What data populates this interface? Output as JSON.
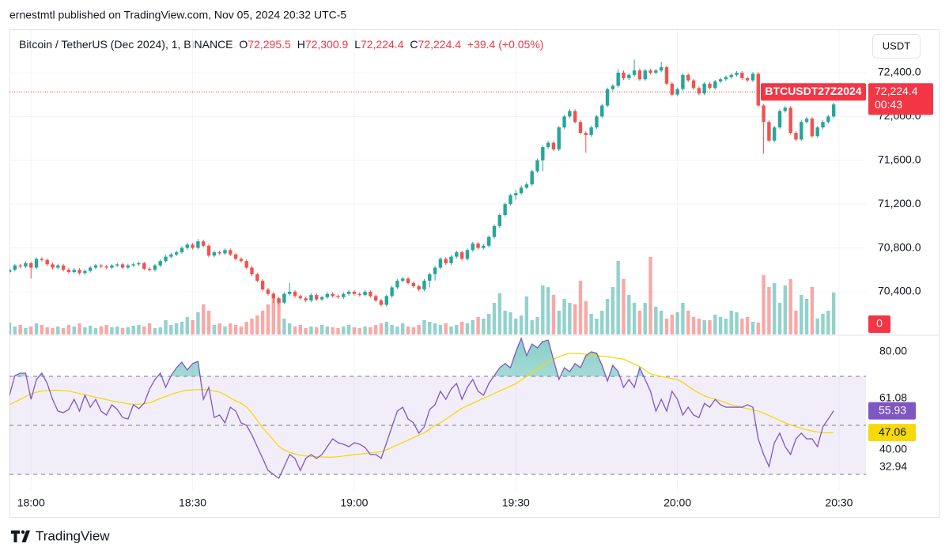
{
  "header": {
    "publisher_line": "ernestmtl published on TradingView.com, Nov 05, 2024 20:32 UTC-5",
    "symbol": "Bitcoin / TetherUS (Dec 2024), 1, BINANCE",
    "ohlc": [
      {
        "label": "O",
        "value": "72,295.5"
      },
      {
        "label": "H",
        "value": "72,300.9"
      },
      {
        "label": "L",
        "value": "72,224.4"
      },
      {
        "label": "C",
        "value": "72,224.4"
      }
    ],
    "change": "+39.4 (+0.05%)",
    "currency": "USDT"
  },
  "footer": {
    "brand": "TradingView"
  },
  "chart_data": {
    "type": "candlestick",
    "up_color": "#26a69a",
    "down_color": "#ef5350",
    "rsi_color": "#7e57c2",
    "rsi_ma_color": "#f5d90a",
    "grid": true,
    "xlim": [
      "17:56",
      "20:35"
    ],
    "xticks": [
      "18:00",
      "18:30",
      "19:00",
      "19:30",
      "20:00",
      "20:30"
    ],
    "ylim": [
      70010,
      72775
    ],
    "yticks": [
      {
        "value": 72400,
        "label": "72,400.0"
      },
      {
        "value": 72000,
        "label": "72,000.0"
      },
      {
        "value": 71600,
        "label": "71,600.0"
      },
      {
        "value": 71200,
        "label": "71,200.0"
      },
      {
        "value": 70800,
        "label": "70,800.0"
      },
      {
        "value": 70400,
        "label": "70,400.0"
      }
    ],
    "last_price": {
      "value": 72224.4,
      "label": "72,224.4"
    },
    "symbol_tag": "BTCUSDT27Z2024",
    "countdown": "00:43",
    "volume_ylim": [
      0,
      383
    ],
    "volume_ticks": [
      0
    ],
    "rsi_ylim": [
      23.55,
      86.45
    ],
    "rsi_yticks": [
      {
        "value": 80,
        "label": "80.00"
      },
      {
        "value": 61.08,
        "label": "61.08"
      },
      {
        "value": 40,
        "label": "40.00"
      },
      {
        "value": 32.94,
        "label": "32.94"
      }
    ],
    "rsi_levels": [
      70,
      50,
      30
    ],
    "x": [
      "17:56",
      "17:57",
      "17:58",
      "17:59",
      "18:00",
      "18:01",
      "18:02",
      "18:03",
      "18:04",
      "18:05",
      "18:06",
      "18:07",
      "18:08",
      "18:09",
      "18:10",
      "18:11",
      "18:12",
      "18:13",
      "18:14",
      "18:15",
      "18:16",
      "18:17",
      "18:18",
      "18:19",
      "18:20",
      "18:21",
      "18:22",
      "18:23",
      "18:24",
      "18:25",
      "18:26",
      "18:27",
      "18:28",
      "18:29",
      "18:30",
      "18:31",
      "18:32",
      "18:33",
      "18:34",
      "18:35",
      "18:36",
      "18:37",
      "18:38",
      "18:39",
      "18:40",
      "18:41",
      "18:42",
      "18:43",
      "18:44",
      "18:45",
      "18:46",
      "18:47",
      "18:48",
      "18:49",
      "18:50",
      "18:51",
      "18:52",
      "18:53",
      "18:54",
      "18:55",
      "18:56",
      "18:57",
      "18:58",
      "18:59",
      "19:00",
      "19:01",
      "19:02",
      "19:03",
      "19:04",
      "19:05",
      "19:06",
      "19:07",
      "19:08",
      "19:09",
      "19:10",
      "19:11",
      "19:12",
      "19:13",
      "19:14",
      "19:15",
      "19:16",
      "19:17",
      "19:18",
      "19:19",
      "19:20",
      "19:21",
      "19:22",
      "19:23",
      "19:24",
      "19:25",
      "19:26",
      "19:27",
      "19:28",
      "19:29",
      "19:30",
      "19:31",
      "19:32",
      "19:33",
      "19:34",
      "19:35",
      "19:36",
      "19:37",
      "19:38",
      "19:39",
      "19:40",
      "19:41",
      "19:42",
      "19:43",
      "19:44",
      "19:45",
      "19:46",
      "19:47",
      "19:48",
      "19:49",
      "19:50",
      "19:51",
      "19:52",
      "19:53",
      "19:54",
      "19:55",
      "19:56",
      "19:57",
      "19:58",
      "19:59",
      "20:00",
      "20:01",
      "20:02",
      "20:03",
      "20:04",
      "20:05",
      "20:06",
      "20:07",
      "20:08",
      "20:09",
      "20:10",
      "20:11",
      "20:12",
      "20:13",
      "20:14",
      "20:15",
      "20:16",
      "20:17",
      "20:18",
      "20:19",
      "20:20",
      "20:21",
      "20:22",
      "20:23",
      "20:24",
      "20:25",
      "20:26",
      "20:27",
      "20:28",
      "20:29"
    ],
    "open": [
      70580,
      70600,
      70640,
      70630,
      70660,
      70620,
      70700,
      70690,
      70650,
      70620,
      70640,
      70600,
      70580,
      70600,
      70570,
      70590,
      70620,
      70640,
      70630,
      70620,
      70640,
      70650,
      70620,
      70640,
      70650,
      70660,
      70610,
      70600,
      70640,
      70680,
      70720,
      70740,
      70760,
      70800,
      70830,
      70800,
      70860,
      70820,
      70730,
      70760,
      70750,
      70780,
      70740,
      70700,
      70680,
      70620,
      70560,
      70500,
      70420,
      70380,
      70340,
      70300,
      70380,
      70400,
      70360,
      70340,
      70320,
      70370,
      70330,
      70350,
      70380,
      70360,
      70350,
      70380,
      70400,
      70380,
      70370,
      70400,
      70360,
      70320,
      70280,
      70360,
      70440,
      70500,
      70520,
      70480,
      70450,
      70420,
      70500,
      70560,
      70620,
      70700,
      70660,
      70720,
      70760,
      70700,
      70780,
      70840,
      70800,
      70820,
      70900,
      71000,
      71100,
      71200,
      71280,
      71300,
      71350,
      71380,
      71500,
      71600,
      71720,
      71760,
      71700,
      71900,
      72000,
      72050,
      71950,
      71850,
      71830,
      71900,
      72000,
      72100,
      72250,
      72280,
      72400,
      72350,
      72380,
      72420,
      72340,
      72420,
      72400,
      72420,
      72450,
      72300,
      72200,
      72250,
      72380,
      72330,
      72260,
      72210,
      72300,
      72260,
      72320,
      72340,
      72360,
      72380,
      72400,
      72350,
      72330,
      72390,
      72100,
      71950,
      71780,
      71900,
      72050,
      72080,
      71850,
      71790,
      71950,
      71980,
      71820,
      71900,
      71950,
      72000
    ],
    "high": [
      70615,
      70655,
      70655,
      70675,
      70675,
      70715,
      70715,
      70705,
      70665,
      70655,
      70655,
      70615,
      70615,
      70615,
      70605,
      70635,
      70655,
      70655,
      70645,
      70655,
      70665,
      70665,
      70655,
      70665,
      70675,
      70675,
      70625,
      70655,
      70695,
      70735,
      70755,
      70775,
      70815,
      70845,
      70845,
      70880,
      70875,
      70835,
      70775,
      70775,
      70795,
      70795,
      70755,
      70715,
      70695,
      70635,
      70575,
      70515,
      70435,
      70395,
      70355,
      70395,
      70480,
      70415,
      70375,
      70355,
      70385,
      70385,
      70365,
      70395,
      70395,
      70375,
      70395,
      70415,
      70415,
      70395,
      70415,
      70415,
      70375,
      70335,
      70375,
      70455,
      70515,
      70535,
      70535,
      70495,
      70465,
      70515,
      70575,
      70635,
      70715,
      70715,
      70735,
      70775,
      70775,
      70795,
      70855,
      70855,
      70835,
      70915,
      71015,
      71115,
      71215,
      71295,
      71330,
      71370,
      71400,
      71515,
      71615,
      71735,
      71775,
      71775,
      71915,
      72015,
      72065,
      72065,
      71965,
      71865,
      71915,
      72015,
      72115,
      72265,
      72295,
      72430,
      72420,
      72395,
      72520,
      72440,
      72435,
      72435,
      72435,
      72500,
      72465,
      72315,
      72265,
      72395,
      72395,
      72345,
      72275,
      72315,
      72315,
      72335,
      72355,
      72375,
      72395,
      72415,
      72415,
      72365,
      72405,
      72405,
      72115,
      71965,
      71915,
      72065,
      72095,
      72095,
      71865,
      71965,
      71995,
      71995,
      71915,
      71965,
      72015,
      72125
    ],
    "low": [
      70565,
      70585,
      70615,
      70615,
      70520,
      70605,
      70675,
      70635,
      70605,
      70605,
      70585,
      70565,
      70565,
      70555,
      70555,
      70575,
      70605,
      70615,
      70605,
      70605,
      70625,
      70605,
      70605,
      70625,
      70635,
      70595,
      70585,
      70585,
      70625,
      70665,
      70705,
      70725,
      70745,
      70785,
      70785,
      70785,
      70805,
      70715,
      70715,
      70735,
      70735,
      70725,
      70685,
      70665,
      70605,
      70545,
      70485,
      70405,
      70365,
      70300,
      70285,
      70285,
      70365,
      70345,
      70325,
      70305,
      70305,
      70315,
      70315,
      70335,
      70345,
      70335,
      70335,
      70365,
      70365,
      70355,
      70355,
      70345,
      70305,
      70265,
      70265,
      70345,
      70425,
      70485,
      70465,
      70435,
      70405,
      70405,
      70440,
      70500,
      70605,
      70645,
      70645,
      70705,
      70685,
      70685,
      70765,
      70785,
      70785,
      70805,
      70885,
      70985,
      71085,
      71185,
      71240,
      71285,
      71335,
      71365,
      71485,
      71500,
      71705,
      71685,
      71685,
      71885,
      71985,
      71935,
      71835,
      71670,
      71815,
      71885,
      71985,
      72085,
      72235,
      72265,
      72335,
      72335,
      72365,
      72325,
      72325,
      72385,
      72385,
      72405,
      72285,
      72185,
      72185,
      72235,
      72315,
      72245,
      72195,
      72195,
      72245,
      72245,
      72305,
      72325,
      72345,
      72365,
      72335,
      72315,
      72315,
      72085,
      71660,
      71765,
      71765,
      71885,
      72035,
      71835,
      71775,
      71775,
      71935,
      71805,
      71805,
      71885,
      71935,
      71985
    ],
    "close": [
      70600,
      70640,
      70630,
      70660,
      70620,
      70700,
      70690,
      70650,
      70620,
      70640,
      70600,
      70580,
      70600,
      70570,
      70590,
      70620,
      70640,
      70630,
      70620,
      70640,
      70650,
      70620,
      70640,
      70650,
      70660,
      70610,
      70600,
      70640,
      70680,
      70720,
      70740,
      70760,
      70800,
      70830,
      70800,
      70860,
      70820,
      70730,
      70760,
      70750,
      70780,
      70740,
      70700,
      70680,
      70620,
      70560,
      70500,
      70420,
      70380,
      70340,
      70300,
      70380,
      70400,
      70360,
      70340,
      70320,
      70370,
      70330,
      70350,
      70380,
      70360,
      70350,
      70380,
      70400,
      70380,
      70370,
      70400,
      70360,
      70320,
      70280,
      70360,
      70440,
      70500,
      70520,
      70480,
      70450,
      70420,
      70500,
      70560,
      70620,
      70700,
      70660,
      70720,
      70760,
      70700,
      70780,
      70840,
      70800,
      70820,
      70900,
      71000,
      71100,
      71200,
      71280,
      71300,
      71350,
      71380,
      71500,
      71600,
      71720,
      71760,
      71700,
      71900,
      72000,
      72050,
      71950,
      71850,
      71830,
      71900,
      72000,
      72100,
      72250,
      72280,
      72400,
      72350,
      72380,
      72420,
      72340,
      72420,
      72400,
      72420,
      72450,
      72300,
      72200,
      72250,
      72380,
      72330,
      72260,
      72210,
      72300,
      72260,
      72320,
      72340,
      72360,
      72380,
      72400,
      72350,
      72330,
      72390,
      72100,
      71950,
      71780,
      71900,
      72050,
      72080,
      71850,
      71790,
      71950,
      71980,
      71820,
      71900,
      71950,
      72000,
      72110
    ],
    "volume": [
      15,
      10,
      12,
      8,
      10,
      14,
      12,
      9,
      8,
      10,
      8,
      12,
      10,
      14,
      9,
      11,
      8,
      10,
      12,
      9,
      10,
      8,
      9,
      11,
      12,
      10,
      14,
      8,
      9,
      18,
      12,
      14,
      16,
      22,
      18,
      28,
      38,
      30,
      12,
      14,
      10,
      14,
      12,
      10,
      16,
      20,
      24,
      30,
      38,
      52,
      45,
      20,
      14,
      10,
      12,
      8,
      10,
      9,
      12,
      10,
      9,
      8,
      10,
      12,
      9,
      8,
      10,
      9,
      12,
      14,
      16,
      12,
      10,
      14,
      10,
      9,
      12,
      18,
      16,
      14,
      12,
      14,
      10,
      12,
      16,
      14,
      18,
      22,
      20,
      26,
      40,
      52,
      30,
      28,
      20,
      24,
      48,
      18,
      22,
      62,
      60,
      50,
      30,
      45,
      40,
      38,
      68,
      42,
      26,
      20,
      30,
      45,
      60,
      93,
      70,
      50,
      40,
      30,
      40,
      98,
      35,
      30,
      20,
      25,
      28,
      40,
      30,
      22,
      20,
      18,
      18,
      25,
      22,
      20,
      30,
      28,
      20,
      22,
      16,
      15,
      75,
      60,
      65,
      40,
      62,
      70,
      30,
      50,
      45,
      60,
      20,
      26,
      30,
      53
    ],
    "rsi": [
      62.3,
      70.3,
      71.3,
      71.3,
      60.6,
      68.7,
      71.3,
      67.1,
      60.6,
      55.8,
      55.2,
      56.5,
      60.6,
      55.8,
      62.3,
      57.4,
      60.6,
      55.8,
      54.2,
      58.4,
      56.5,
      53.2,
      52.6,
      58.4,
      56.8,
      59.0,
      64.8,
      68.7,
      71.3,
      65.5,
      70.3,
      73.5,
      75.8,
      72.6,
      75.2,
      76.1,
      60.6,
      65.5,
      53.2,
      54.2,
      51.0,
      57.4,
      55.8,
      51.0,
      50.0,
      46.1,
      41.3,
      36.5,
      31.6,
      30.0,
      28.4,
      33.2,
      38.1,
      36.5,
      31.6,
      36.5,
      38.1,
      36.5,
      38.1,
      41.3,
      44.5,
      42.9,
      42.3,
      41.3,
      42.9,
      42.3,
      41.0,
      38.1,
      38.1,
      36.5,
      42.9,
      49.4,
      55.8,
      57.4,
      52.6,
      51.0,
      46.8,
      49.4,
      56.5,
      58.4,
      63.9,
      60.6,
      64.8,
      67.1,
      60.6,
      65.5,
      68.7,
      63.9,
      62.3,
      67.1,
      70.3,
      73.5,
      75.2,
      73.5,
      80.0,
      85.5,
      78.4,
      83.2,
      81.6,
      84.2,
      84.8,
      76.8,
      68.7,
      73.5,
      71.9,
      75.2,
      73.5,
      78.4,
      80.0,
      79.4,
      74.5,
      68.1,
      74.5,
      71.9,
      65.5,
      68.7,
      65.5,
      73.5,
      68.7,
      63.9,
      55.8,
      60.6,
      55.8,
      63.9,
      60.6,
      54.2,
      57.4,
      54.2,
      53.2,
      59.0,
      57.4,
      60.6,
      58.4,
      57.4,
      57.4,
      57.4,
      57.4,
      58.4,
      57.4,
      44.5,
      38.1,
      33.2,
      42.9,
      46.8,
      41.3,
      38.1,
      44.5,
      46.8,
      44.5,
      44.5,
      41.3,
      49.4,
      52.6,
      55.93
    ],
    "rsi_ma": [
      58.4,
      59.5,
      60.6,
      61.7,
      62.8,
      63.5,
      64.0,
      64.2,
      64.3,
      64.3,
      64.2,
      64.0,
      63.5,
      63.0,
      62.5,
      62.0,
      61.5,
      61.0,
      60.5,
      60.0,
      59.6,
      59.2,
      58.8,
      58.6,
      58.6,
      58.8,
      59.2,
      60.0,
      61.0,
      61.8,
      62.6,
      63.3,
      63.9,
      64.3,
      64.5,
      64.6,
      64.6,
      64.4,
      64.0,
      63.5,
      62.5,
      61.2,
      60.0,
      59.0,
      57.5,
      55.0,
      52.0,
      49.0,
      46.5,
      44.0,
      41.5,
      40.0,
      39.0,
      38.3,
      37.8,
      37.5,
      37.3,
      37.2,
      37.1,
      37.0,
      37.0,
      37.2,
      37.5,
      37.8,
      38.0,
      38.3,
      38.5,
      38.8,
      39.0,
      39.3,
      40.0,
      41.0,
      42.0,
      43.0,
      44.0,
      45.0,
      46.0,
      47.0,
      48.5,
      50.0,
      51.0,
      52.5,
      54.0,
      55.5,
      57.0,
      58.0,
      59.0,
      60.0,
      61.0,
      62.0,
      63.0,
      64.0,
      65.0,
      66.0,
      67.0,
      68.5,
      70.0,
      71.5,
      73.0,
      74.5,
      75.8,
      77.0,
      78.0,
      78.8,
      79.4,
      79.4,
      79.2,
      79.0,
      78.7,
      78.4,
      78.2,
      78.0,
      77.7,
      77.3,
      77.0,
      76.0,
      75.0,
      74.0,
      72.5,
      71.0,
      70.5,
      70.0,
      69.5,
      69.0,
      68.7,
      67.5,
      66.0,
      64.5,
      63.2,
      62.0,
      61.3,
      60.7,
      60.0,
      59.2,
      58.4,
      57.8,
      57.3,
      56.8,
      56.3,
      55.8,
      55.0,
      54.0,
      53.0,
      52.0,
      51.0,
      50.2,
      49.5,
      48.8,
      48.2,
      47.7,
      47.3,
      47.0,
      46.9,
      47.06
    ]
  }
}
